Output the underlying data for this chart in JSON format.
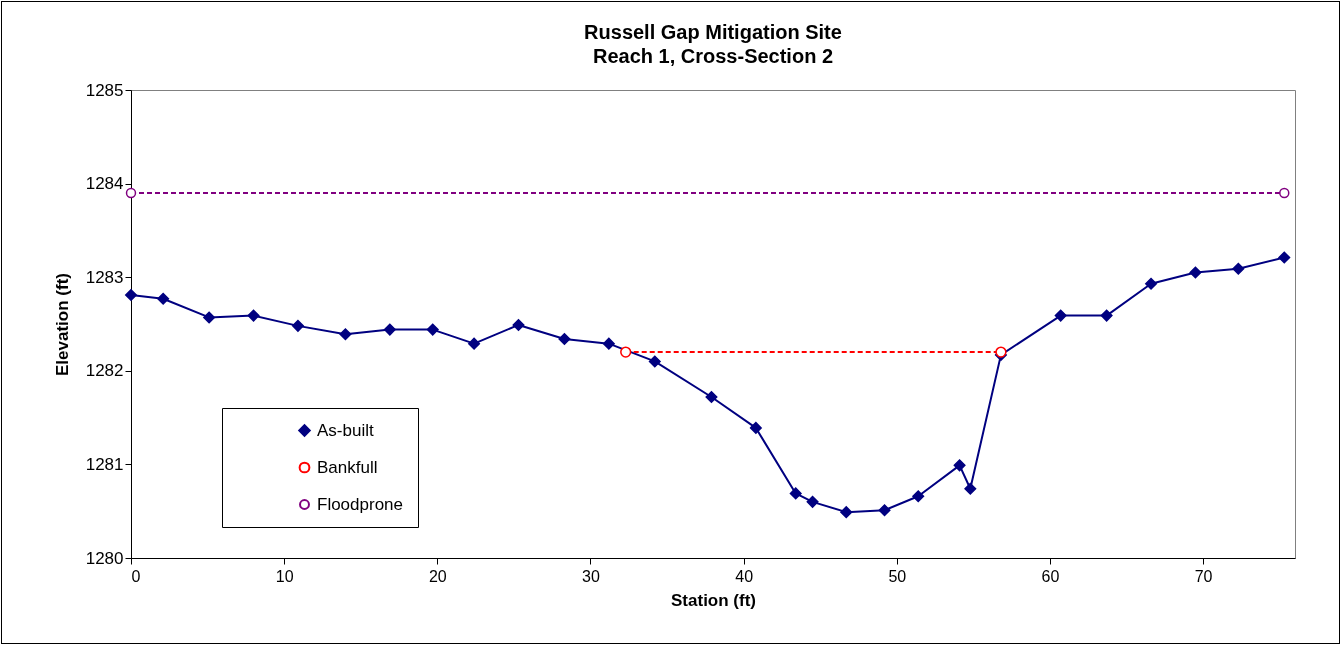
{
  "chart_data": {
    "type": "line",
    "title": "Russell Gap Mitigation Site\nReach 1, Cross-Section 2",
    "xlabel": "Station (ft)",
    "ylabel": "Elevation (ft)",
    "xlim": [
      0,
      76
    ],
    "xticks": [
      0,
      10,
      20,
      30,
      40,
      50,
      60,
      70
    ],
    "ylim": [
      1280,
      1285
    ],
    "yticks": [
      1280,
      1281,
      1282,
      1283,
      1284,
      1285
    ],
    "grid": false,
    "legend": "bottom left",
    "series": [
      {
        "name": "As-built",
        "color": "#000080",
        "marker": "diamond",
        "line_style": "solid",
        "x": [
          0,
          2.1,
          5.1,
          8.0,
          10.9,
          14.0,
          16.9,
          19.7,
          22.4,
          25.3,
          28.3,
          31.2,
          34.2,
          37.9,
          40.8,
          43.4,
          44.5,
          46.7,
          49.2,
          51.4,
          54.1,
          54.8,
          56.8,
          60.7,
          63.7,
          66.6,
          69.5,
          72.3,
          75.3
        ],
        "values": [
          1282.81,
          1282.77,
          1282.57,
          1282.59,
          1282.48,
          1282.39,
          1282.44,
          1282.44,
          1282.29,
          1282.49,
          1282.34,
          1282.29,
          1282.1,
          1281.72,
          1281.39,
          1280.69,
          1280.6,
          1280.49,
          1280.51,
          1280.66,
          1280.99,
          1280.74,
          1282.17,
          1282.59,
          1282.59,
          1282.93,
          1283.05,
          1283.09,
          1283.21
        ]
      },
      {
        "name": "Bankfull",
        "color": "#ff0000",
        "marker": "circle",
        "line_style": "dashed",
        "x": [
          32.3,
          56.8
        ],
        "values": [
          1282.2,
          1282.2
        ]
      },
      {
        "name": "Floodprone",
        "color": "#800080",
        "marker": "circle",
        "line_style": "dashed",
        "x": [
          0,
          75.3
        ],
        "values": [
          1283.9,
          1283.9
        ]
      }
    ]
  }
}
